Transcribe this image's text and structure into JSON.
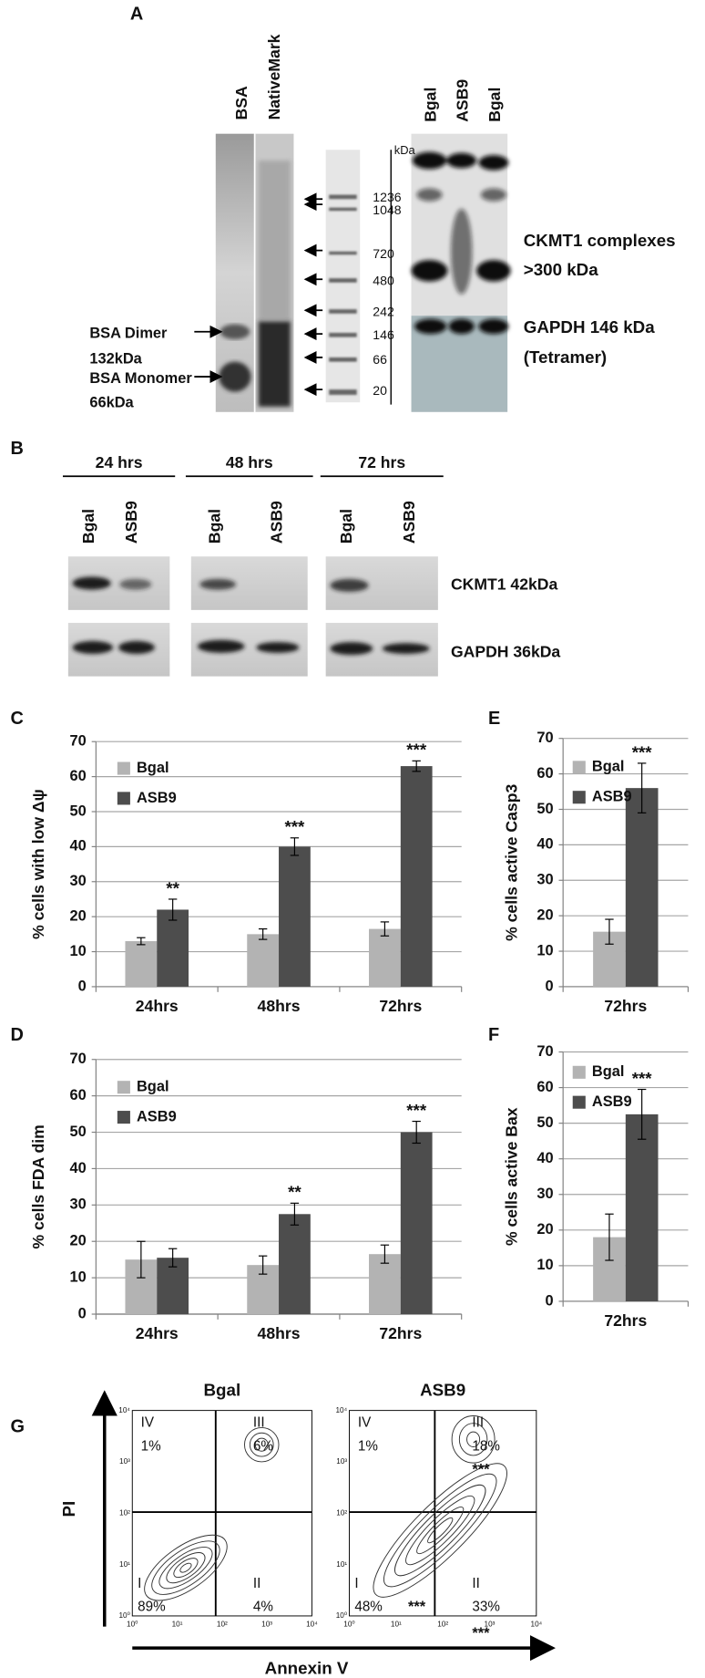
{
  "panel_a": {
    "label": "A",
    "lanes_left": [
      "BSA",
      "NativeMark"
    ],
    "unit": "kDa",
    "markers": [
      1236,
      1048,
      720,
      480,
      242,
      146,
      66,
      20
    ],
    "dimer": [
      "BSA Dimer",
      "132kDa"
    ],
    "monomer": [
      "BSA Monomer",
      "66kDa"
    ],
    "lanes_right": [
      "Bgal",
      "ASB9",
      "Bgal"
    ],
    "complexes": [
      "CKMT1 complexes",
      ">300 kDa"
    ],
    "gapdh": [
      "GAPDH 146 kDa",
      "(Tetramer)"
    ]
  },
  "panel_b": {
    "label": "B",
    "times": [
      "24 hrs",
      "48 hrs",
      "72 hrs"
    ],
    "lanes": [
      "Bgal",
      "ASB9"
    ],
    "rows": [
      "CKMT1  42kDa",
      "GAPDH  36kDa"
    ]
  },
  "chart_data": [
    {
      "type": "bar",
      "panel": "C",
      "ylabel": "% cells with low Δψ",
      "categories": [
        "24hrs",
        "48hrs",
        "72hrs"
      ],
      "series": [
        {
          "name": "Bgal",
          "color": "#b3b3b3",
          "values": [
            13,
            15,
            16.5
          ],
          "errors": [
            1,
            1.5,
            2
          ]
        },
        {
          "name": "ASB9",
          "color": "#4d4d4d",
          "values": [
            22,
            40,
            63
          ],
          "errors": [
            3,
            2.5,
            1.5
          ]
        }
      ],
      "annotations": [
        "**",
        "***",
        "***"
      ],
      "ylim": [
        0,
        70
      ],
      "yticks": [
        0,
        10,
        20,
        30,
        40,
        50,
        60,
        70
      ],
      "grid": true
    },
    {
      "type": "bar",
      "panel": "E",
      "ylabel": "% cells  active Casp3",
      "categories": [
        "72hrs"
      ],
      "series": [
        {
          "name": "Bgal",
          "color": "#b3b3b3",
          "values": [
            15.5
          ],
          "errors": [
            3.5
          ]
        },
        {
          "name": "ASB9",
          "color": "#4d4d4d",
          "values": [
            56
          ],
          "errors": [
            7
          ]
        }
      ],
      "annotations": [
        "***"
      ],
      "ylim": [
        0,
        70
      ],
      "yticks": [
        0,
        10,
        20,
        30,
        40,
        50,
        60,
        70
      ],
      "grid": true
    },
    {
      "type": "bar",
      "panel": "D",
      "ylabel": "% cells  FDA dim",
      "categories": [
        "24hrs",
        "48hrs",
        "72hrs"
      ],
      "series": [
        {
          "name": "Bgal",
          "color": "#b3b3b3",
          "values": [
            15,
            13.5,
            16.5
          ],
          "errors": [
            5,
            2.5,
            2.5
          ]
        },
        {
          "name": "ASB9",
          "color": "#4d4d4d",
          "values": [
            15.5,
            27.5,
            50
          ],
          "errors": [
            2.5,
            3,
            3
          ]
        }
      ],
      "annotations": [
        null,
        "**",
        "***"
      ],
      "ylim": [
        0,
        70
      ],
      "yticks": [
        0,
        10,
        20,
        30,
        40,
        50,
        60,
        70
      ],
      "grid": true
    },
    {
      "type": "bar",
      "panel": "F",
      "ylabel": "% cells  active Bax",
      "categories": [
        "72hrs"
      ],
      "series": [
        {
          "name": "Bgal",
          "color": "#b3b3b3",
          "values": [
            18
          ],
          "errors": [
            6.5
          ]
        },
        {
          "name": "ASB9",
          "color": "#4d4d4d",
          "values": [
            52.5
          ],
          "errors": [
            7
          ]
        }
      ],
      "annotations": [
        "***"
      ],
      "ylim": [
        0,
        70
      ],
      "yticks": [
        0,
        10,
        20,
        30,
        40,
        50,
        60,
        70
      ],
      "grid": true
    }
  ],
  "panel_g": {
    "label": "G",
    "y_label": "PI",
    "x_label": "Annexin V",
    "axis_ticks": [
      "10⁰",
      "10¹",
      "10²",
      "10³",
      "10⁴"
    ],
    "plots": [
      {
        "title": "Bgal",
        "quadrants": [
          {
            "name": "IV",
            "value": "1%",
            "stars": null
          },
          {
            "name": "III",
            "value": "6%",
            "stars": null
          },
          {
            "name": "I",
            "value": "89%",
            "stars": null
          },
          {
            "name": "II",
            "value": "4%",
            "stars": null
          }
        ]
      },
      {
        "title": "ASB9",
        "quadrants": [
          {
            "name": "IV",
            "value": "1%",
            "stars": null
          },
          {
            "name": "III",
            "value": "18%",
            "stars": "***"
          },
          {
            "name": "I",
            "value": "48%",
            "stars": "***"
          },
          {
            "name": "II",
            "value": "33%",
            "stars": "***"
          }
        ]
      }
    ]
  }
}
